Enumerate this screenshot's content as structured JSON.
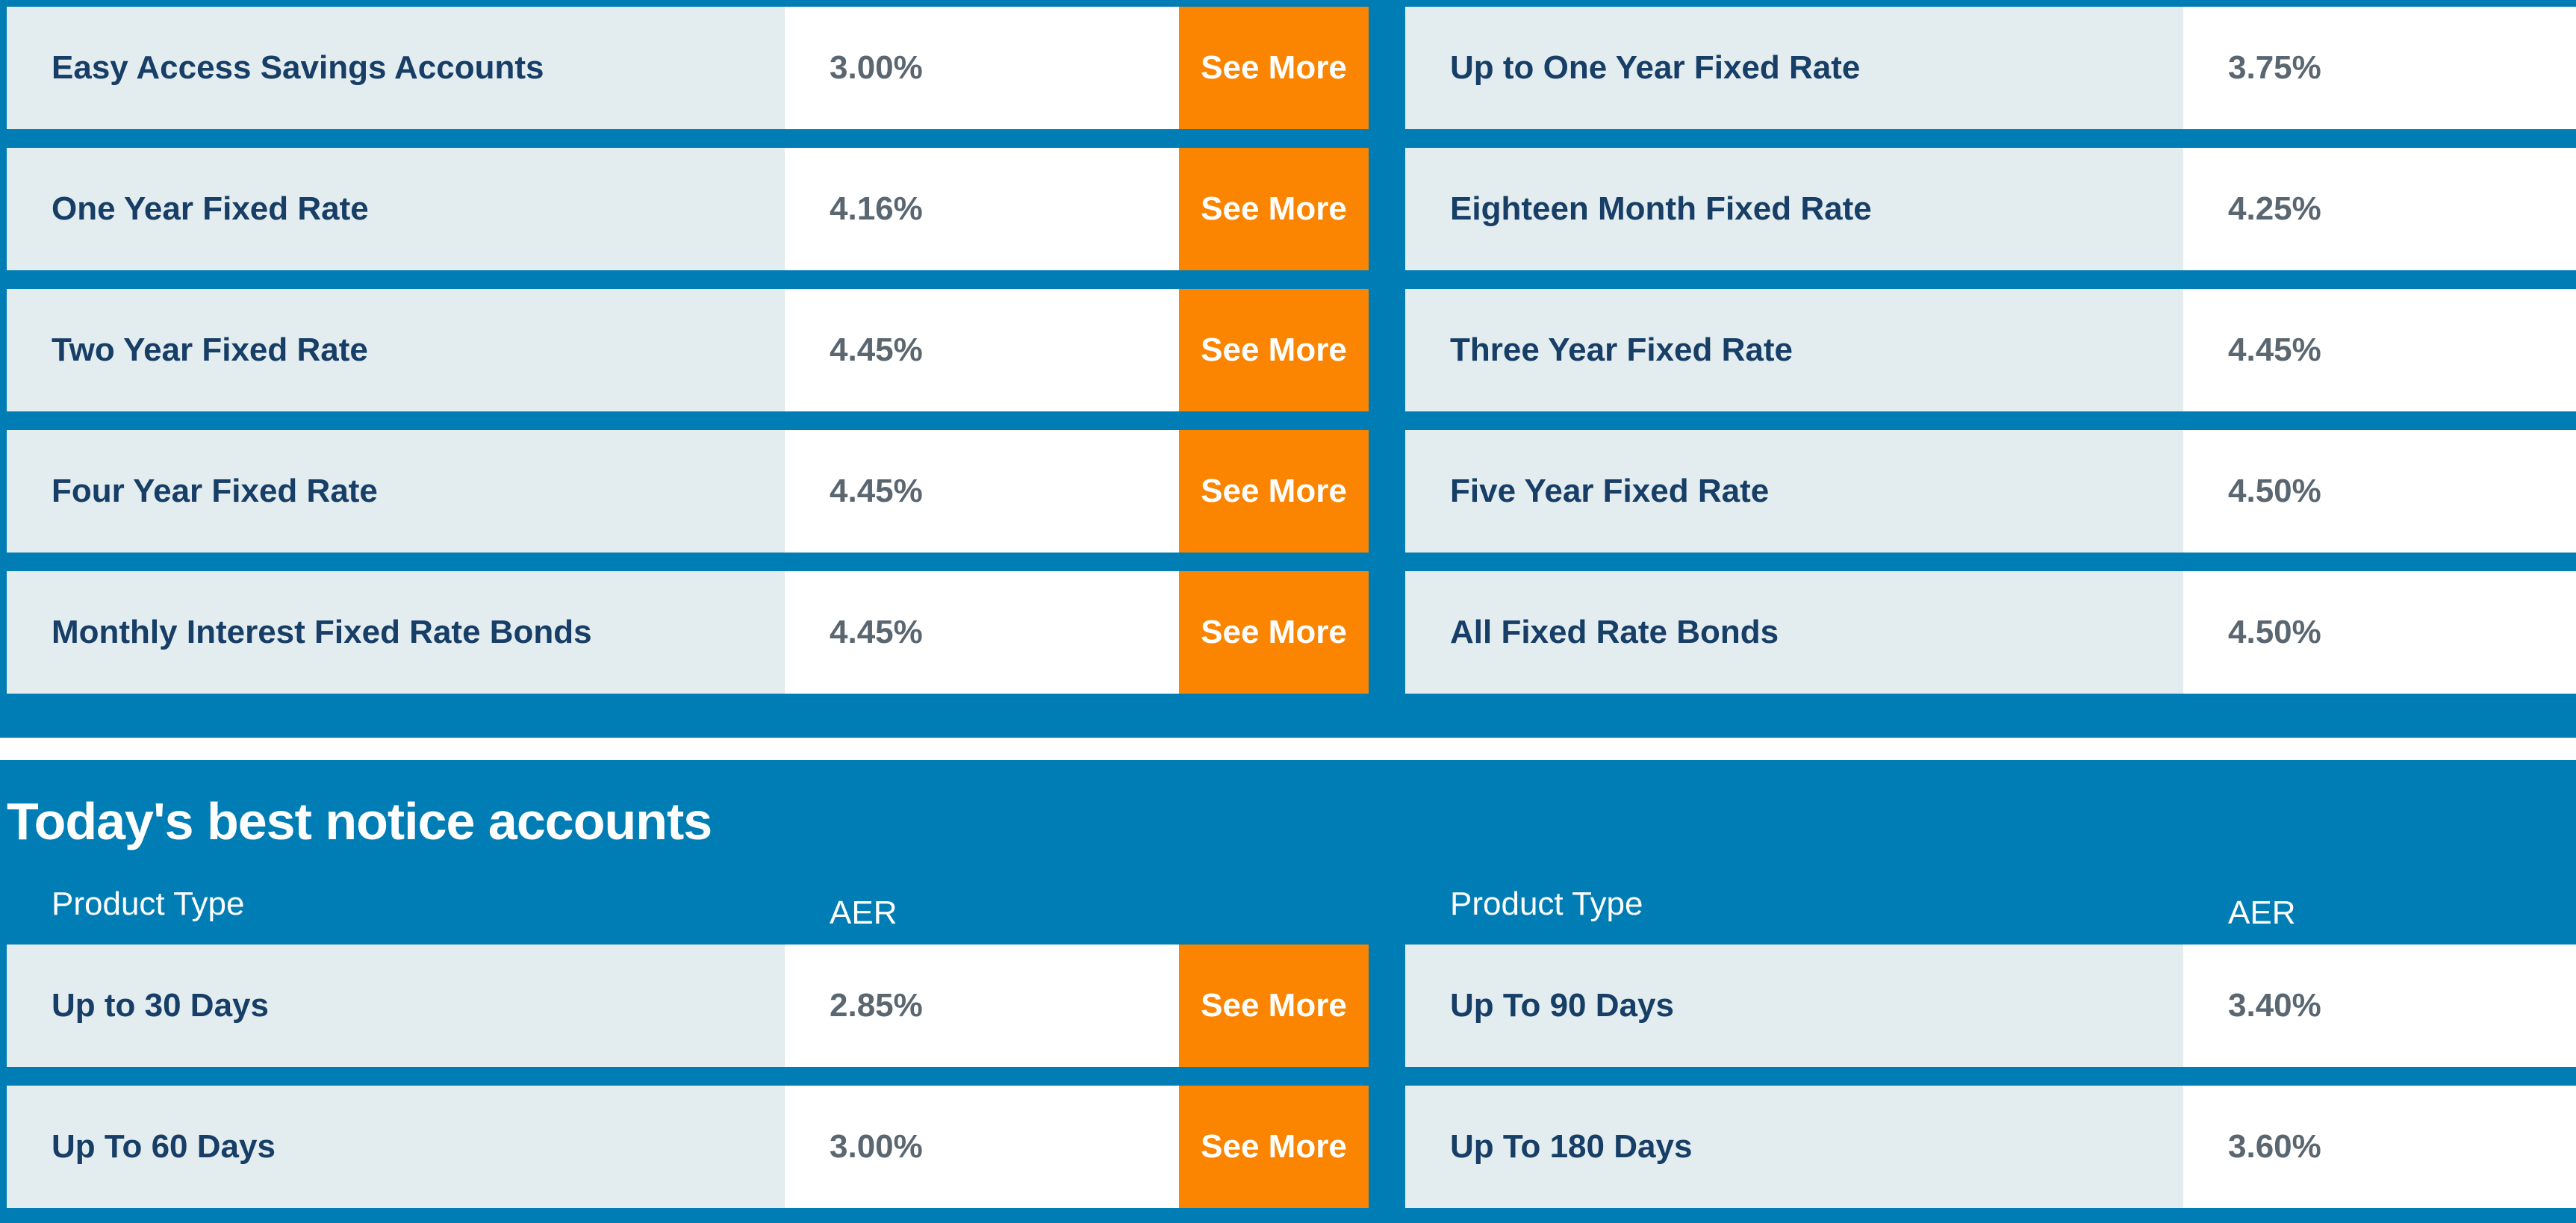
{
  "rates": {
    "left": [
      {
        "name": "Easy Access Savings Accounts",
        "rate": "3.00%",
        "button": "See More"
      },
      {
        "name": "One Year Fixed Rate",
        "rate": "4.16%",
        "button": "See More"
      },
      {
        "name": "Two Year Fixed Rate",
        "rate": "4.45%",
        "button": "See More"
      },
      {
        "name": "Four Year Fixed Rate",
        "rate": "4.45%",
        "button": "See More"
      },
      {
        "name": "Monthly Interest Fixed Rate Bonds",
        "rate": "4.45%",
        "button": "See More"
      }
    ],
    "right": [
      {
        "name": "Up to One Year Fixed Rate",
        "rate": "3.75%"
      },
      {
        "name": "Eighteen Month Fixed Rate",
        "rate": "4.25%"
      },
      {
        "name": "Three Year Fixed Rate",
        "rate": "4.45%"
      },
      {
        "name": "Five Year Fixed Rate",
        "rate": "4.50%"
      },
      {
        "name": "All Fixed Rate Bonds",
        "rate": "4.50%"
      }
    ]
  },
  "notice": {
    "title": "Today's best notice accounts",
    "headers": {
      "product": "Product Type",
      "aer": "AER"
    },
    "left": [
      {
        "name": "Up to 30 Days",
        "rate": "2.85%",
        "button": "See More"
      },
      {
        "name": "Up To 60 Days",
        "rate": "3.00%",
        "button": "See More"
      }
    ],
    "right": [
      {
        "name": "Up To 90 Days",
        "rate": "3.40%"
      },
      {
        "name": "Up To 180 Days",
        "rate": "3.60%"
      }
    ]
  },
  "colors": {
    "section_bg": "#007db4",
    "name_cell_bg": "#e3ecee",
    "button_bg": "#fb8500",
    "name_text": "#173e66",
    "rate_text": "#5a6670"
  }
}
